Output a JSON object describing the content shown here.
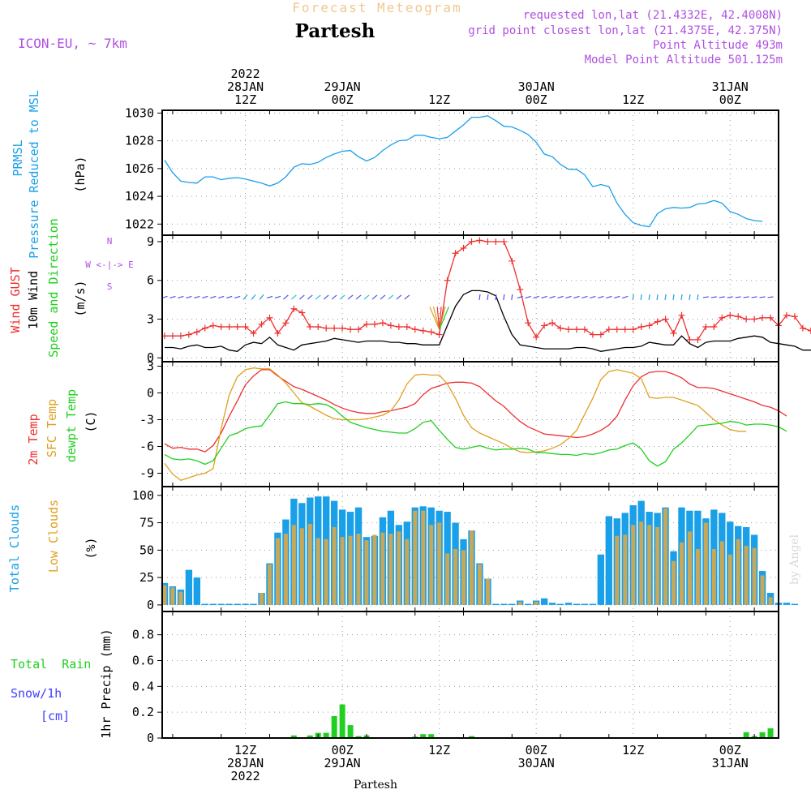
{
  "header": {
    "title": "Forecast Meteogram",
    "location": "Partesh",
    "model": "ICON-EU, ~ 7km",
    "requested": "requested lon,lat (21.4332E, 42.4008N)",
    "gridpoint": "grid point closest lon,lat (21.4375E, 42.375N)",
    "point_alt": "Point Altitude 493m",
    "model_alt": "Model Point Altitude 501.125m"
  },
  "colors": {
    "pressure": "#1aa0e8",
    "gust": "#ee3030",
    "wind": "#000000",
    "temp2m": "#ee3030",
    "sfc": "#e0a020",
    "dewpt": "#20d020",
    "total_clouds": "#1aa0e8",
    "low_clouds": "#c8a858",
    "rain": "#20d020",
    "snow": "#4040ff",
    "purple": "#b050e0"
  },
  "time_axis": {
    "top_labels": [
      {
        "t": 15,
        "lines": [
          "2022",
          "28JAN",
          "12Z"
        ]
      },
      {
        "t": 27,
        "lines": [
          "29JAN",
          "00Z"
        ]
      },
      {
        "t": 39,
        "lines": [
          "12Z"
        ]
      },
      {
        "t": 51,
        "lines": [
          "30JAN",
          "00Z"
        ]
      },
      {
        "t": 63,
        "lines": [
          "12Z"
        ]
      },
      {
        "t": 75,
        "lines": [
          "31JAN",
          "00Z"
        ]
      }
    ],
    "bottom_labels": [
      {
        "t": 15,
        "lines": [
          "12Z",
          "28JAN",
          "2022"
        ]
      },
      {
        "t": 27,
        "lines": [
          "00Z",
          "29JAN"
        ]
      },
      {
        "t": 39,
        "lines": [
          "12Z"
        ]
      },
      {
        "t": 51,
        "lines": [
          "00Z",
          "30JAN"
        ]
      },
      {
        "t": 63,
        "lines": [
          "12Z"
        ]
      },
      {
        "t": 75,
        "lines": [
          "00Z",
          "31JAN"
        ]
      }
    ],
    "range_hours": [
      4.7,
      81
    ],
    "footer": "Partesh",
    "watermark": "by Angel"
  },
  "panels": {
    "pressure": {
      "label1": "PRMSL",
      "label2": "Pressure Reduced to MSL",
      "unit": "(hPa)"
    },
    "wind": {
      "label_gust": "Wind GUST",
      "label_wind": "10m Wind",
      "label_dir": "Speed and Direction",
      "unit": "(m/s)",
      "compass": [
        "N",
        "W <-|-> E",
        "S"
      ]
    },
    "temp": {
      "label_2m": "2m Temp",
      "label_sfc": "SFC Temp",
      "label_dew": "dewpt Temp",
      "unit": "(C)"
    },
    "clouds": {
      "label_total": "Total Clouds",
      "label_low": "Low Clouds",
      "unit": "(%)"
    },
    "precip": {
      "label_rain": "Total  Rain",
      "label_snow": "Snow/1h",
      "label_cm": "[cm]",
      "axis": "1hr Precip (mm)"
    }
  },
  "chart_data": [
    {
      "type": "line",
      "title": "PRMSL Pressure Reduced to MSL",
      "ylabel": "hPa",
      "ylim": [
        1021.2,
        1030.2
      ],
      "yticks": [
        1022,
        1024,
        1026,
        1028,
        1030
      ],
      "series": [
        {
          "name": "PRMSL",
          "t0": 5,
          "values": [
            1026.6,
            1025.7,
            1025.1,
            1025.0,
            1024.95,
            1025.4,
            1025.4,
            1025.2,
            1025.3,
            1025.35,
            1025.25,
            1025.1,
            1024.95,
            1024.75,
            1024.95,
            1025.4,
            1026.1,
            1026.35,
            1026.3,
            1026.45,
            1026.8,
            1027.05,
            1027.25,
            1027.3,
            1026.85,
            1026.55,
            1026.8,
            1027.3,
            1027.7,
            1028.0,
            1028.05,
            1028.4,
            1028.4,
            1028.25,
            1028.15,
            1028.25,
            1028.7,
            1029.15,
            1029.7,
            1029.7,
            1029.8,
            1029.45,
            1029.05,
            1029.0,
            1028.75,
            1028.45,
            1027.9,
            1027.05,
            1026.85,
            1026.3,
            1025.95,
            1025.95,
            1025.55,
            1024.7,
            1024.85,
            1024.7,
            1023.5,
            1022.7,
            1022.1,
            1021.9,
            1021.8,
            1022.75,
            1023.1,
            1023.2,
            1023.15,
            1023.2,
            1023.45,
            1023.5,
            1023.7,
            1023.5,
            1022.9,
            1022.7,
            1022.4,
            1022.25,
            1022.2
          ]
        }
      ]
    },
    {
      "type": "line",
      "title": "Wind GUST / 10m Wind Speed and Direction",
      "ylabel": "m/s",
      "ylim": [
        -0.3,
        9.5
      ],
      "yticks": [
        0,
        3,
        6,
        9
      ],
      "series": [
        {
          "name": "Wind GUST",
          "t0": 5,
          "values": [
            1.7,
            1.7,
            1.7,
            1.8,
            2.0,
            2.3,
            2.5,
            2.4,
            2.4,
            2.4,
            2.4,
            1.9,
            2.6,
            3.1,
            1.9,
            2.7,
            3.8,
            3.5,
            2.4,
            2.4,
            2.3,
            2.3,
            2.3,
            2.2,
            2.2,
            2.6,
            2.6,
            2.7,
            2.5,
            2.4,
            2.4,
            2.2,
            2.1,
            2.0,
            1.8,
            6.0,
            8.1,
            8.5,
            9.0,
            9.1,
            9.0,
            9.0,
            9.0,
            7.5,
            5.3,
            2.7,
            1.6,
            2.5,
            2.7,
            2.3,
            2.2,
            2.2,
            2.2,
            1.8,
            1.8,
            2.2,
            2.2,
            2.2,
            2.2,
            2.4,
            2.5,
            2.8,
            3.0,
            1.9,
            3.3,
            1.4,
            1.4,
            2.4,
            2.4,
            3.1,
            3.3,
            3.2,
            3.0,
            3.0,
            3.1,
            3.1,
            2.5,
            3.3,
            3.2,
            2.3,
            2.1,
            2.2,
            2.8
          ]
        },
        {
          "name": "10m Wind",
          "t0": 5,
          "values": [
            0.8,
            0.8,
            0.7,
            0.9,
            1.0,
            0.8,
            0.8,
            0.9,
            0.6,
            0.5,
            1.0,
            1.2,
            1.1,
            1.6,
            1.0,
            0.8,
            0.6,
            1.0,
            1.1,
            1.2,
            1.3,
            1.5,
            1.4,
            1.3,
            1.2,
            1.3,
            1.3,
            1.3,
            1.2,
            1.2,
            1.1,
            1.1,
            1.0,
            1.0,
            1.0,
            2.5,
            4.0,
            4.9,
            5.2,
            5.2,
            5.1,
            4.8,
            3.2,
            1.8,
            1.0,
            0.9,
            0.8,
            0.7,
            0.7,
            0.7,
            0.7,
            0.8,
            0.8,
            0.7,
            0.5,
            0.6,
            0.7,
            0.8,
            0.8,
            0.9,
            1.2,
            1.1,
            1.0,
            1.0,
            1.7,
            1.1,
            0.8,
            1.2,
            1.3,
            1.3,
            1.3,
            1.5,
            1.6,
            1.7,
            1.6,
            1.2,
            1.1,
            1.0,
            0.9,
            0.6,
            0.6,
            0.8,
            1.0
          ]
        }
      ]
    },
    {
      "type": "line",
      "title": "2m Temp / SFC Temp / dewpt Temp",
      "ylabel": "C",
      "ylim": [
        -10.5,
        3.5
      ],
      "yticks": [
        3,
        0,
        -3,
        -6,
        -9
      ],
      "series": [
        {
          "name": "2m Temp",
          "t0": 5,
          "values": [
            -5.7,
            -6.2,
            -6.1,
            -6.3,
            -6.3,
            -6.6,
            -5.9,
            -4.5,
            -2.6,
            -0.9,
            0.9,
            1.9,
            2.6,
            2.6,
            1.9,
            1.3,
            0.7,
            0.4,
            0.0,
            -0.4,
            -0.8,
            -1.3,
            -1.7,
            -2.0,
            -2.2,
            -2.3,
            -2.3,
            -2.1,
            -2.0,
            -1.8,
            -1.6,
            -1.2,
            -0.2,
            0.5,
            0.8,
            1.1,
            1.2,
            1.2,
            1.1,
            0.7,
            -0.1,
            -0.9,
            -1.5,
            -2.4,
            -3.2,
            -3.8,
            -4.2,
            -4.6,
            -4.7,
            -4.8,
            -4.9,
            -5.0,
            -4.9,
            -4.6,
            -4.2,
            -3.6,
            -2.6,
            -0.8,
            0.8,
            1.8,
            2.3,
            2.4,
            2.4,
            2.1,
            1.7,
            1.0,
            0.6,
            0.6,
            0.5,
            0.2,
            -0.1,
            -0.4,
            -0.7,
            -1.0,
            -1.4,
            -1.6,
            -2.0,
            -2.6
          ]
        },
        {
          "name": "SFC Temp",
          "t0": 5,
          "values": [
            -7.9,
            -9.1,
            -9.8,
            -9.5,
            -9.2,
            -9.0,
            -8.5,
            -4.0,
            -0.2,
            1.8,
            2.6,
            2.8,
            2.7,
            2.7,
            2.0,
            1.1,
            0.0,
            -1.1,
            -1.5,
            -2.0,
            -2.5,
            -2.9,
            -3.0,
            -3.0,
            -3.0,
            -2.9,
            -2.7,
            -2.5,
            -2.0,
            -0.8,
            1.0,
            2.0,
            2.1,
            2.0,
            2.0,
            1.0,
            -0.6,
            -2.5,
            -3.9,
            -4.5,
            -4.9,
            -5.3,
            -5.7,
            -6.2,
            -6.6,
            -6.7,
            -6.6,
            -6.5,
            -6.2,
            -5.8,
            -5.1,
            -4.2,
            -2.4,
            -0.6,
            1.5,
            2.4,
            2.6,
            2.4,
            2.2,
            1.6,
            -0.5,
            -0.6,
            -0.5,
            -0.5,
            -0.8,
            -1.1,
            -1.4,
            -2.2,
            -3.0,
            -3.6,
            -4.1,
            -4.3,
            -4.3
          ]
        },
        {
          "name": "dewpt Temp",
          "t0": 5,
          "values": [
            -6.9,
            -7.4,
            -7.5,
            -7.4,
            -7.6,
            -8.0,
            -7.6,
            -6.2,
            -4.8,
            -4.5,
            -4.0,
            -3.8,
            -3.7,
            -2.5,
            -1.2,
            -1.0,
            -1.2,
            -1.2,
            -1.3,
            -1.2,
            -1.3,
            -1.8,
            -2.6,
            -3.3,
            -3.6,
            -3.9,
            -4.1,
            -4.3,
            -4.4,
            -4.5,
            -4.5,
            -4.0,
            -3.3,
            -3.1,
            -4.2,
            -5.2,
            -6.1,
            -6.3,
            -6.1,
            -5.9,
            -6.2,
            -6.4,
            -6.3,
            -6.3,
            -6.2,
            -6.3,
            -6.7,
            -6.7,
            -6.8,
            -6.9,
            -6.9,
            -7.0,
            -6.8,
            -6.9,
            -6.7,
            -6.4,
            -6.3,
            -5.9,
            -5.6,
            -6.3,
            -7.6,
            -8.2,
            -7.7,
            -6.3,
            -5.6,
            -4.7,
            -3.7,
            -3.6,
            -3.5,
            -3.4,
            -3.2,
            -3.3,
            -3.6,
            -3.5,
            -3.5,
            -3.6,
            -3.8,
            -4.3
          ]
        }
      ]
    },
    {
      "type": "bar",
      "title": "Total Clouds / Low Clouds",
      "ylabel": "%",
      "ylim": [
        -6,
        108
      ],
      "yticks": [
        0,
        25,
        50,
        75,
        100
      ],
      "series": [
        {
          "name": "Total Clouds",
          "t0": 5,
          "values": [
            20,
            17,
            14,
            32,
            25,
            1,
            1,
            1,
            1,
            1,
            1,
            1,
            11,
            38,
            66,
            78,
            97,
            93,
            98,
            99,
            99,
            95,
            87,
            85,
            89,
            62,
            63,
            80,
            86,
            73,
            76,
            89,
            90,
            89,
            86,
            85,
            75,
            60,
            68,
            38,
            24,
            1,
            1,
            1,
            4,
            1,
            4,
            6,
            2,
            1,
            2,
            1,
            1,
            1,
            46,
            81,
            79,
            84,
            91,
            95,
            85,
            84,
            89,
            49,
            89,
            86,
            86,
            79,
            87,
            84,
            76,
            72,
            71,
            64,
            31,
            11,
            2,
            2,
            1
          ]
        },
        {
          "name": "Low Clouds",
          "t0": 5,
          "values": [
            18,
            16,
            12,
            0,
            0,
            0,
            0,
            0,
            0,
            0,
            0,
            0,
            11,
            37,
            61,
            65,
            73,
            70,
            74,
            61,
            60,
            71,
            62,
            63,
            65,
            59,
            64,
            66,
            65,
            67,
            60,
            86,
            86,
            73,
            75,
            47,
            51,
            50,
            68,
            37,
            24,
            0,
            0,
            0,
            3,
            0,
            3,
            0,
            0,
            0,
            0,
            0,
            0,
            0,
            0,
            0,
            63,
            64,
            73,
            76,
            73,
            71,
            88,
            40,
            57,
            67,
            51,
            75,
            51,
            58,
            46,
            60,
            54,
            52,
            27,
            7,
            0,
            0,
            0
          ]
        }
      ]
    },
    {
      "type": "bar",
      "title": "Total Rain / Snow 1h",
      "ylabel": "1hr Precip (mm)",
      "ylim": [
        0,
        0.98
      ],
      "yticks": [
        0,
        0.2,
        0.4,
        0.6,
        0.8
      ],
      "series": [
        {
          "name": "Total Rain",
          "t0": 5,
          "values": [
            0,
            0,
            0,
            0,
            0,
            0,
            0,
            0,
            0,
            0,
            0,
            0,
            0,
            0,
            0,
            0,
            0.02,
            0,
            0.02,
            0.04,
            0.04,
            0.17,
            0.26,
            0.1,
            0.015,
            0.02,
            0,
            0,
            0,
            0,
            0,
            0.01,
            0.03,
            0.03,
            0,
            0,
            0,
            0,
            0.015,
            0,
            0,
            0,
            0,
            0,
            0,
            0,
            0,
            0,
            0,
            0,
            0,
            0,
            0,
            0,
            0,
            0,
            0,
            0,
            0,
            0,
            0,
            0,
            0,
            0,
            0,
            0,
            0,
            0,
            0,
            0,
            0,
            0.005,
            0.045,
            0.015,
            0.045,
            0.075,
            0,
            0,
            0
          ]
        },
        {
          "name": "Snow/1h",
          "t0": 5,
          "values": []
        }
      ]
    }
  ]
}
